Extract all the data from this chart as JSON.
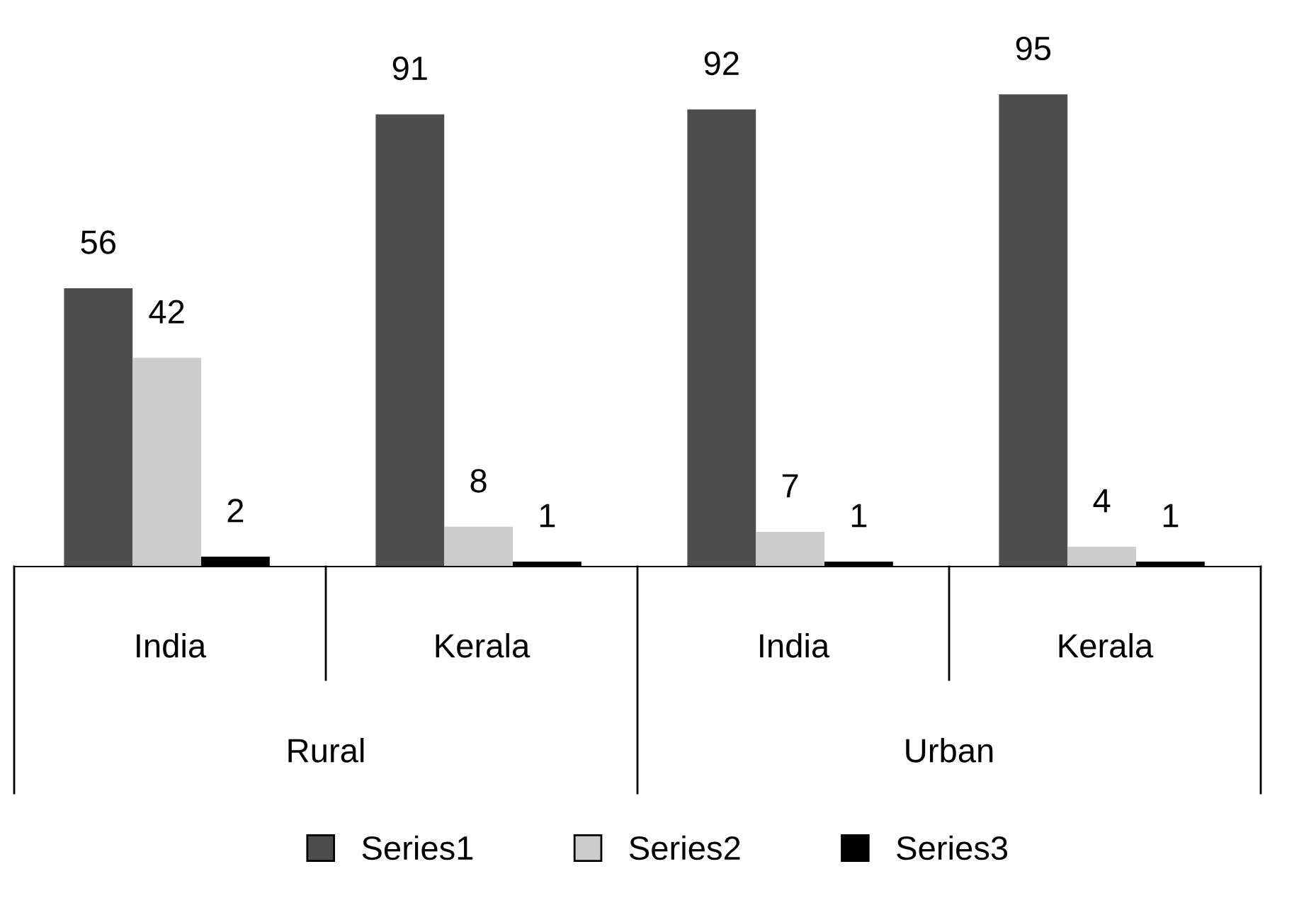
{
  "chart_data": {
    "type": "bar",
    "categories": [
      "India",
      "Kerala",
      "India",
      "Kerala"
    ],
    "series": [
      {
        "name": "Series1",
        "color": "#4d4d4d",
        "values": [
          56,
          91,
          92,
          95
        ]
      },
      {
        "name": "Series2",
        "color": "#cccccc",
        "values": [
          42,
          8,
          7,
          4
        ]
      },
      {
        "name": "Series3",
        "color": "#000000",
        "values": [
          2,
          1,
          1,
          1
        ]
      }
    ],
    "data_labels": true,
    "legend": "bottom",
    "annotations": [
      "Rural",
      "Urban"
    ]
  }
}
